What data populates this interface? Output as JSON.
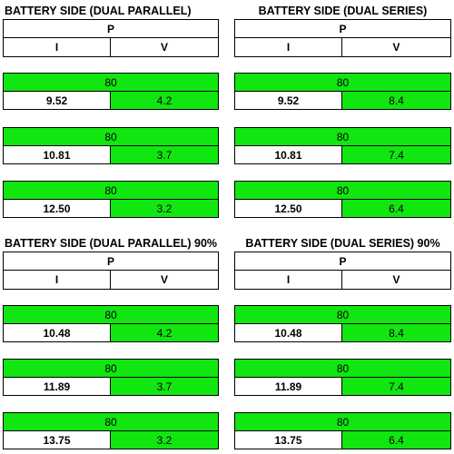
{
  "panels": [
    {
      "title": "BATTERY SIDE (DUAL PARALLEL)",
      "header_p": "P",
      "header_i": "I",
      "header_v": "V",
      "blocks": [
        {
          "p": "80",
          "i": "9.52",
          "v": "4.2"
        },
        {
          "p": "80",
          "i": "10.81",
          "v": "3.7"
        },
        {
          "p": "80",
          "i": "12.50",
          "v": "3.2"
        }
      ]
    },
    {
      "title": "BATTERY SIDE (DUAL SERIES)",
      "header_p": "P",
      "header_i": "I",
      "header_v": "V",
      "blocks": [
        {
          "p": "80",
          "i": "9.52",
          "v": "8.4"
        },
        {
          "p": "80",
          "i": "10.81",
          "v": "7.4"
        },
        {
          "p": "80",
          "i": "12.50",
          "v": "6.4"
        }
      ]
    },
    {
      "title": "BATTERY SIDE (DUAL PARALLEL) 90%",
      "header_p": "P",
      "header_i": "I",
      "header_v": "V",
      "blocks": [
        {
          "p": "80",
          "i": "10.48",
          "v": "4.2"
        },
        {
          "p": "80",
          "i": "11.89",
          "v": "3.7"
        },
        {
          "p": "80",
          "i": "13.75",
          "v": "3.2"
        }
      ]
    },
    {
      "title": "BATTERY SIDE (DUAL SERIES) 90%",
      "header_p": "P",
      "header_i": "I",
      "header_v": "V",
      "blocks": [
        {
          "p": "80",
          "i": "10.48",
          "v": "8.4"
        },
        {
          "p": "80",
          "i": "11.89",
          "v": "7.4"
        },
        {
          "p": "80",
          "i": "13.75",
          "v": "6.4"
        }
      ]
    }
  ]
}
